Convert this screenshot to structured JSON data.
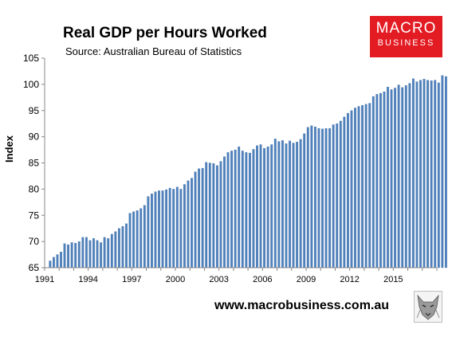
{
  "header": {
    "title": "Real GDP per Hours Worked",
    "subtitle": "Source: Australian Bureau of Statistics"
  },
  "logo": {
    "line1": "MACRO",
    "line2": "BUSINESS"
  },
  "footer": {
    "website": "www.macrobusiness.com.au"
  },
  "colors": {
    "bar": "#4f81bd",
    "bar_outline": "#3a6aa3",
    "brand": "#e31b23",
    "axis": "#888888"
  },
  "icons": {
    "mascot": "wolf-icon"
  },
  "chart_data": {
    "type": "bar",
    "title": "Real GDP per Hours Worked",
    "subtitle": "Source: Australian Bureau of Statistics",
    "xlabel": "",
    "ylabel": "Index",
    "ylim": [
      65,
      105
    ],
    "yticks": [
      65,
      70,
      75,
      80,
      85,
      90,
      95,
      100,
      105
    ],
    "xlim": [
      "1991",
      "2017-Q4"
    ],
    "xticks": [
      "1991",
      "1994",
      "1997",
      "2000",
      "2003",
      "2006",
      "2009",
      "2012",
      "2015"
    ],
    "grid": false,
    "legend": "none",
    "frequency": "quarterly",
    "start_quarter": "1991-Q2",
    "series": [
      {
        "values": [
          66.3,
          67.0,
          67.5,
          68.0,
          69.6,
          69.4,
          69.8,
          69.7,
          70.0,
          70.8,
          70.8,
          70.2,
          70.6,
          70.2,
          69.8,
          70.8,
          70.6,
          71.4,
          71.9,
          72.5,
          72.9,
          73.4,
          75.4,
          75.7,
          75.9,
          76.3,
          76.9,
          78.6,
          79.1,
          79.5,
          79.7,
          79.7,
          79.9,
          80.2,
          80.0,
          80.4,
          80.0,
          80.9,
          81.6,
          82.1,
          83.3,
          83.9,
          84.0,
          85.1,
          85.0,
          84.9,
          84.5,
          85.3,
          86.2,
          87.0,
          87.3,
          87.5,
          88.1,
          87.3,
          87.0,
          86.9,
          87.6,
          88.3,
          88.5,
          87.8,
          88.1,
          88.5,
          89.6,
          89.1,
          89.3,
          88.7,
          89.2,
          88.8,
          89.0,
          89.5,
          90.6,
          91.8,
          92.1,
          91.9,
          91.6,
          91.5,
          91.6,
          91.6,
          92.3,
          92.5,
          93.0,
          93.8,
          94.5,
          95.0,
          95.5,
          95.8,
          96.0,
          96.2,
          96.4,
          97.7,
          98.1,
          98.3,
          98.6,
          99.5,
          99.0,
          99.3,
          99.9,
          99.4,
          99.8,
          100.2,
          101.1,
          100.5,
          100.8,
          101.0,
          100.8,
          100.7,
          100.8,
          100.3,
          101.7,
          101.5
        ]
      }
    ]
  }
}
